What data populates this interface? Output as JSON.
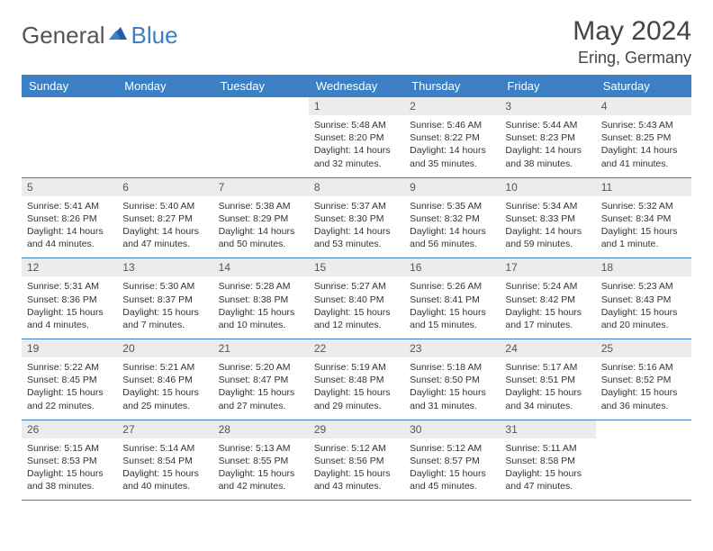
{
  "brand": {
    "name1": "General",
    "name2": "Blue"
  },
  "title": "May 2024",
  "location": "Ering, Germany",
  "colors": {
    "header_bg": "#3b7fc4",
    "header_text": "#ffffff",
    "daynum_bg": "#ececec",
    "row_border": "#3b7fc4",
    "body_text": "#333333",
    "title_text": "#444444"
  },
  "fonts": {
    "title_size": 30,
    "location_size": 18,
    "weekday_size": 13,
    "daynum_size": 12,
    "cell_size": 10.5
  },
  "weekdays": [
    "Sunday",
    "Monday",
    "Tuesday",
    "Wednesday",
    "Thursday",
    "Friday",
    "Saturday"
  ],
  "weeks": [
    [
      {
        "n": "",
        "sunrise": "",
        "sunset": "",
        "daylight": ""
      },
      {
        "n": "",
        "sunrise": "",
        "sunset": "",
        "daylight": ""
      },
      {
        "n": "",
        "sunrise": "",
        "sunset": "",
        "daylight": ""
      },
      {
        "n": "1",
        "sunrise": "Sunrise: 5:48 AM",
        "sunset": "Sunset: 8:20 PM",
        "daylight": "Daylight: 14 hours and 32 minutes."
      },
      {
        "n": "2",
        "sunrise": "Sunrise: 5:46 AM",
        "sunset": "Sunset: 8:22 PM",
        "daylight": "Daylight: 14 hours and 35 minutes."
      },
      {
        "n": "3",
        "sunrise": "Sunrise: 5:44 AM",
        "sunset": "Sunset: 8:23 PM",
        "daylight": "Daylight: 14 hours and 38 minutes."
      },
      {
        "n": "4",
        "sunrise": "Sunrise: 5:43 AM",
        "sunset": "Sunset: 8:25 PM",
        "daylight": "Daylight: 14 hours and 41 minutes."
      }
    ],
    [
      {
        "n": "5",
        "sunrise": "Sunrise: 5:41 AM",
        "sunset": "Sunset: 8:26 PM",
        "daylight": "Daylight: 14 hours and 44 minutes."
      },
      {
        "n": "6",
        "sunrise": "Sunrise: 5:40 AM",
        "sunset": "Sunset: 8:27 PM",
        "daylight": "Daylight: 14 hours and 47 minutes."
      },
      {
        "n": "7",
        "sunrise": "Sunrise: 5:38 AM",
        "sunset": "Sunset: 8:29 PM",
        "daylight": "Daylight: 14 hours and 50 minutes."
      },
      {
        "n": "8",
        "sunrise": "Sunrise: 5:37 AM",
        "sunset": "Sunset: 8:30 PM",
        "daylight": "Daylight: 14 hours and 53 minutes."
      },
      {
        "n": "9",
        "sunrise": "Sunrise: 5:35 AM",
        "sunset": "Sunset: 8:32 PM",
        "daylight": "Daylight: 14 hours and 56 minutes."
      },
      {
        "n": "10",
        "sunrise": "Sunrise: 5:34 AM",
        "sunset": "Sunset: 8:33 PM",
        "daylight": "Daylight: 14 hours and 59 minutes."
      },
      {
        "n": "11",
        "sunrise": "Sunrise: 5:32 AM",
        "sunset": "Sunset: 8:34 PM",
        "daylight": "Daylight: 15 hours and 1 minute."
      }
    ],
    [
      {
        "n": "12",
        "sunrise": "Sunrise: 5:31 AM",
        "sunset": "Sunset: 8:36 PM",
        "daylight": "Daylight: 15 hours and 4 minutes."
      },
      {
        "n": "13",
        "sunrise": "Sunrise: 5:30 AM",
        "sunset": "Sunset: 8:37 PM",
        "daylight": "Daylight: 15 hours and 7 minutes."
      },
      {
        "n": "14",
        "sunrise": "Sunrise: 5:28 AM",
        "sunset": "Sunset: 8:38 PM",
        "daylight": "Daylight: 15 hours and 10 minutes."
      },
      {
        "n": "15",
        "sunrise": "Sunrise: 5:27 AM",
        "sunset": "Sunset: 8:40 PM",
        "daylight": "Daylight: 15 hours and 12 minutes."
      },
      {
        "n": "16",
        "sunrise": "Sunrise: 5:26 AM",
        "sunset": "Sunset: 8:41 PM",
        "daylight": "Daylight: 15 hours and 15 minutes."
      },
      {
        "n": "17",
        "sunrise": "Sunrise: 5:24 AM",
        "sunset": "Sunset: 8:42 PM",
        "daylight": "Daylight: 15 hours and 17 minutes."
      },
      {
        "n": "18",
        "sunrise": "Sunrise: 5:23 AM",
        "sunset": "Sunset: 8:43 PM",
        "daylight": "Daylight: 15 hours and 20 minutes."
      }
    ],
    [
      {
        "n": "19",
        "sunrise": "Sunrise: 5:22 AM",
        "sunset": "Sunset: 8:45 PM",
        "daylight": "Daylight: 15 hours and 22 minutes."
      },
      {
        "n": "20",
        "sunrise": "Sunrise: 5:21 AM",
        "sunset": "Sunset: 8:46 PM",
        "daylight": "Daylight: 15 hours and 25 minutes."
      },
      {
        "n": "21",
        "sunrise": "Sunrise: 5:20 AM",
        "sunset": "Sunset: 8:47 PM",
        "daylight": "Daylight: 15 hours and 27 minutes."
      },
      {
        "n": "22",
        "sunrise": "Sunrise: 5:19 AM",
        "sunset": "Sunset: 8:48 PM",
        "daylight": "Daylight: 15 hours and 29 minutes."
      },
      {
        "n": "23",
        "sunrise": "Sunrise: 5:18 AM",
        "sunset": "Sunset: 8:50 PM",
        "daylight": "Daylight: 15 hours and 31 minutes."
      },
      {
        "n": "24",
        "sunrise": "Sunrise: 5:17 AM",
        "sunset": "Sunset: 8:51 PM",
        "daylight": "Daylight: 15 hours and 34 minutes."
      },
      {
        "n": "25",
        "sunrise": "Sunrise: 5:16 AM",
        "sunset": "Sunset: 8:52 PM",
        "daylight": "Daylight: 15 hours and 36 minutes."
      }
    ],
    [
      {
        "n": "26",
        "sunrise": "Sunrise: 5:15 AM",
        "sunset": "Sunset: 8:53 PM",
        "daylight": "Daylight: 15 hours and 38 minutes."
      },
      {
        "n": "27",
        "sunrise": "Sunrise: 5:14 AM",
        "sunset": "Sunset: 8:54 PM",
        "daylight": "Daylight: 15 hours and 40 minutes."
      },
      {
        "n": "28",
        "sunrise": "Sunrise: 5:13 AM",
        "sunset": "Sunset: 8:55 PM",
        "daylight": "Daylight: 15 hours and 42 minutes."
      },
      {
        "n": "29",
        "sunrise": "Sunrise: 5:12 AM",
        "sunset": "Sunset: 8:56 PM",
        "daylight": "Daylight: 15 hours and 43 minutes."
      },
      {
        "n": "30",
        "sunrise": "Sunrise: 5:12 AM",
        "sunset": "Sunset: 8:57 PM",
        "daylight": "Daylight: 15 hours and 45 minutes."
      },
      {
        "n": "31",
        "sunrise": "Sunrise: 5:11 AM",
        "sunset": "Sunset: 8:58 PM",
        "daylight": "Daylight: 15 hours and 47 minutes."
      },
      {
        "n": "",
        "sunrise": "",
        "sunset": "",
        "daylight": ""
      }
    ]
  ]
}
